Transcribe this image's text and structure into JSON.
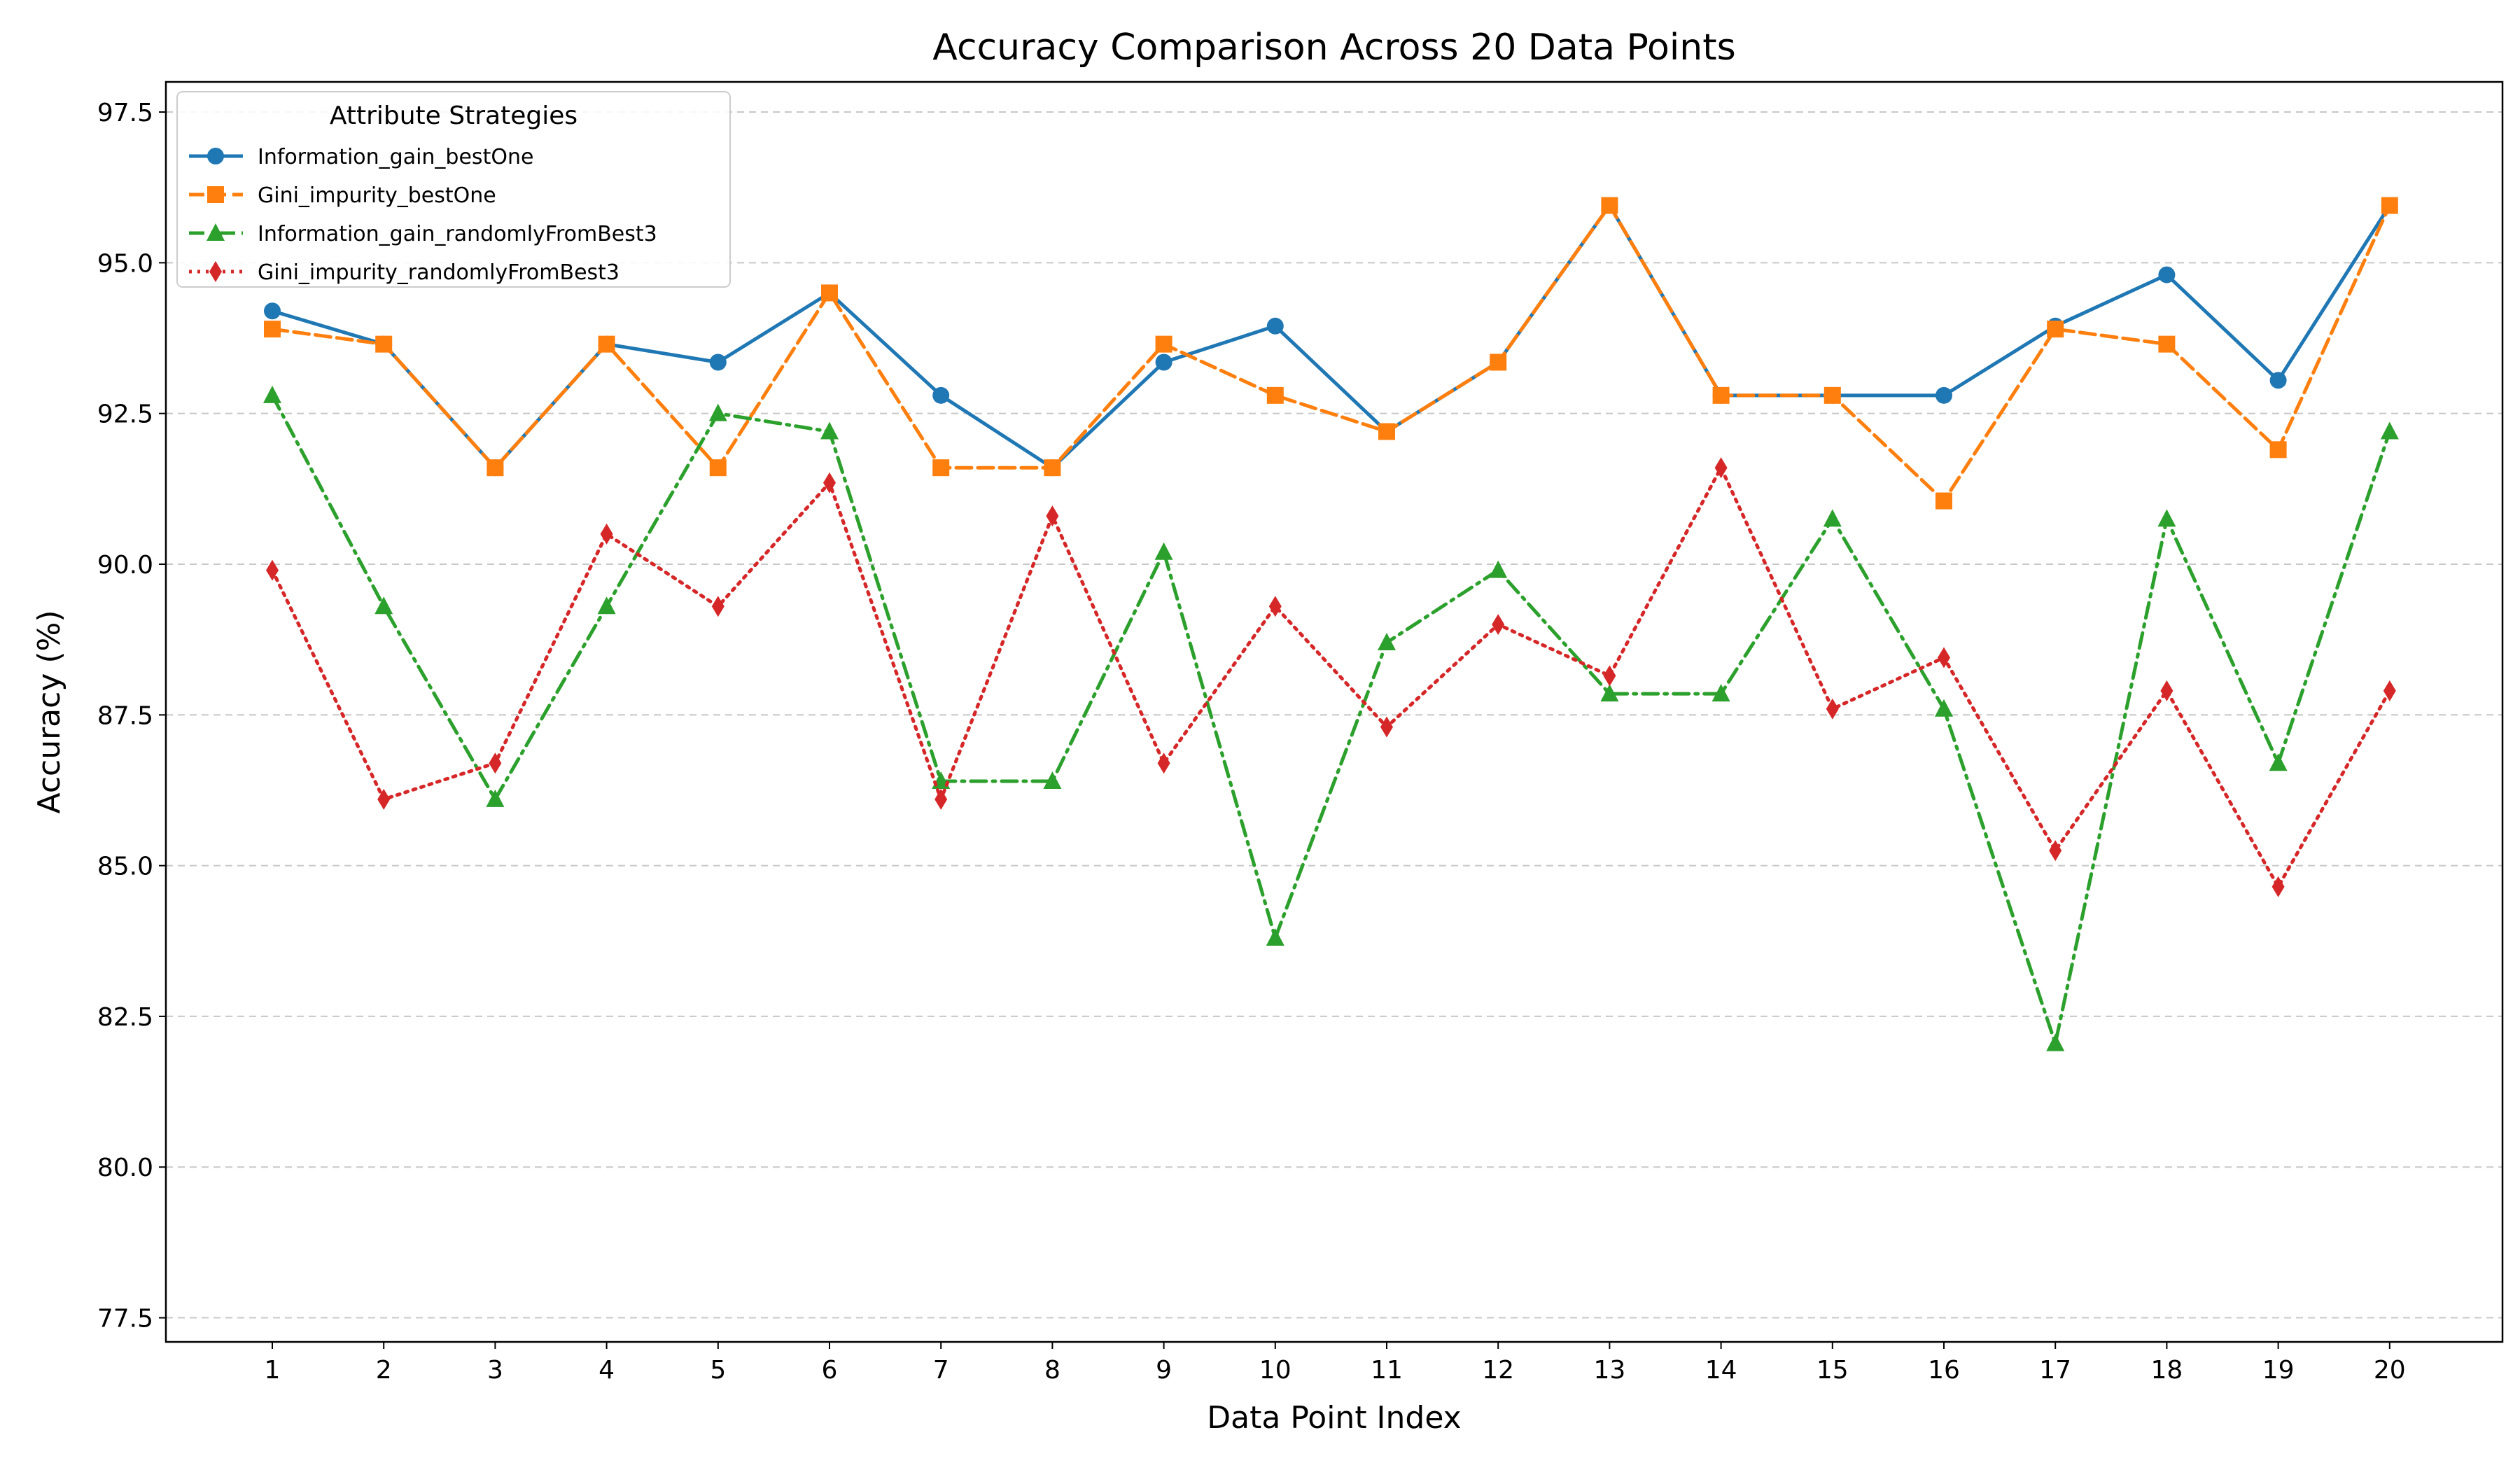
{
  "chart_data": {
    "type": "line",
    "title": "Accuracy Comparison Across 20 Data Points",
    "xlabel": "Data Point Index",
    "ylabel": "Accuracy (%)",
    "categories": [
      "1",
      "2",
      "3",
      "4",
      "5",
      "6",
      "7",
      "8",
      "9",
      "10",
      "11",
      "12",
      "13",
      "14",
      "15",
      "16",
      "17",
      "18",
      "19",
      "20"
    ],
    "y_ticks": [
      "77.5",
      "80.0",
      "82.5",
      "85.0",
      "87.5",
      "90.0",
      "92.5",
      "95.0",
      "97.5"
    ],
    "ylim": [
      77.1,
      98.0
    ],
    "grid": "horizontal dashed",
    "legend": {
      "title": "Attribute Strategies",
      "placement": "top-left"
    },
    "series": [
      {
        "name": "Information_gain_bestOne",
        "color": "#1f77b4",
        "marker": "circle",
        "linestyle": "solid",
        "values": [
          94.2,
          93.65,
          91.6,
          93.65,
          93.35,
          94.5,
          92.8,
          91.6,
          93.35,
          93.95,
          92.2,
          93.35,
          95.95,
          92.8,
          92.8,
          92.8,
          93.95,
          94.8,
          93.05,
          95.95
        ]
      },
      {
        "name": "Gini_impurity_bestOne",
        "color": "#ff7f0e",
        "marker": "square",
        "linestyle": "dashed",
        "values": [
          93.9,
          93.65,
          91.6,
          93.65,
          91.6,
          94.5,
          91.6,
          91.6,
          93.65,
          92.8,
          92.2,
          93.35,
          95.95,
          92.8,
          92.8,
          91.05,
          93.9,
          93.65,
          91.9,
          95.95
        ]
      },
      {
        "name": "Information_gain_randomlyFromBest3",
        "color": "#2ca02c",
        "marker": "triangle",
        "linestyle": "dashdot",
        "values": [
          92.8,
          89.3,
          86.1,
          89.3,
          92.5,
          92.2,
          86.4,
          86.4,
          90.2,
          83.8,
          88.7,
          89.9,
          87.85,
          87.85,
          90.75,
          87.6,
          82.05,
          90.75,
          86.7,
          92.2
        ]
      },
      {
        "name": "Gini_impurity_randomlyFromBest3",
        "color": "#d62728",
        "marker": "diamond",
        "linestyle": "dotted",
        "values": [
          89.9,
          86.1,
          86.7,
          90.5,
          89.3,
          91.35,
          86.1,
          90.8,
          86.7,
          89.3,
          87.3,
          89.0,
          88.15,
          91.6,
          87.6,
          88.45,
          85.25,
          87.9,
          84.65,
          87.9
        ]
      }
    ]
  }
}
